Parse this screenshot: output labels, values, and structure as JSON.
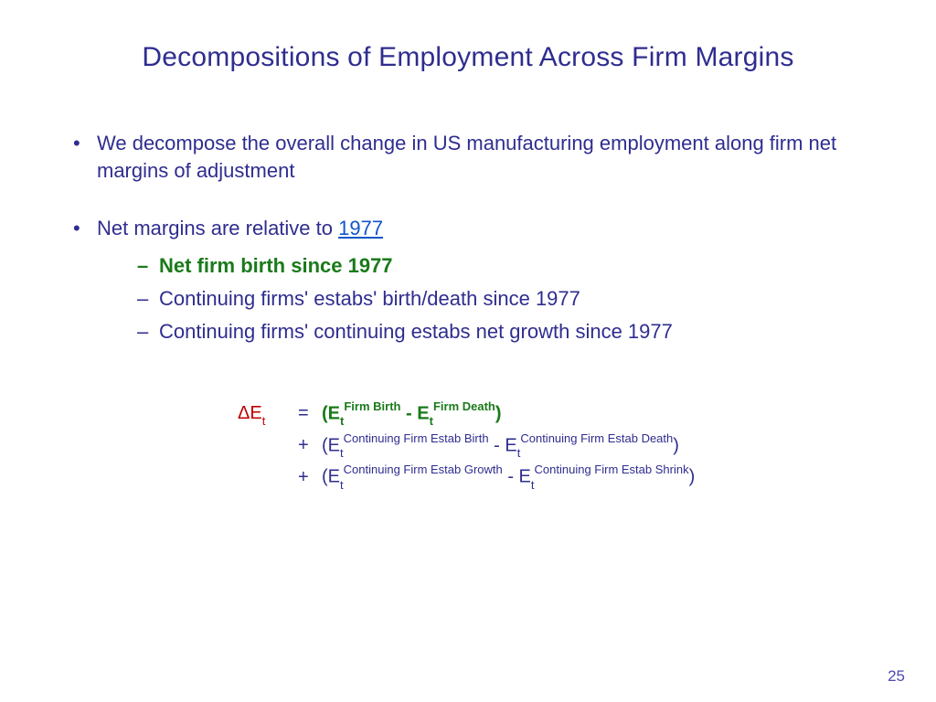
{
  "colors": {
    "primary_text": "#2f2d8f",
    "bold_green": "#1a7a1a",
    "delta_red": "#c00000",
    "link_blue": "#1155cc",
    "page_num": "#4a49b5",
    "background": "#ffffff"
  },
  "typography": {
    "title_fontsize": 30,
    "body_fontsize": 22,
    "equation_fontsize": 20,
    "font_family": "Arial"
  },
  "title": "Decompositions of Employment Across Firm Margins",
  "bullets": {
    "b1": "We decompose the overall change in US manufacturing employment along firm net margins of adjustment",
    "b2_prefix": "Net margins are relative to  ",
    "b2_link": "1977",
    "sub1": "Net firm birth since 1977",
    "sub2": "Continuing firms' estabs' birth/death since 1977",
    "sub3": "Continuing firms' continuing estabs net growth since 1977"
  },
  "equation": {
    "lhs_delta": "Δ",
    "lhs_E": "E",
    "lhs_sub": "t",
    "eq_sign": "=",
    "plus": "+",
    "line1": {
      "open": "(",
      "t1_E": "E",
      "t1_sub": "t",
      "t1_sup": "Firm Birth",
      "minus": " - ",
      "t2_E": "E",
      "t2_sub": "t",
      "t2_sup": "Firm Death",
      "close": ")"
    },
    "line2": {
      "open": "(",
      "t1_E": "E",
      "t1_sub": "t",
      "t1_sup": "Continuing Firm Estab Birth",
      "minus": "  - ",
      "t2_E": "E",
      "t2_sub": "t",
      "t2_sup": "Continuing Firm Estab Death",
      "close": ")"
    },
    "line3": {
      "open": "(",
      "t1_E": "E",
      "t1_sub": "t",
      "t1_sup": "Continuing Firm Estab Growth",
      "minus": " - ",
      "t2_E": "E",
      "t2_sub": "t",
      "t2_sup": "Continuing Firm Estab Shrink",
      "close": ")"
    }
  },
  "page_number": "25"
}
